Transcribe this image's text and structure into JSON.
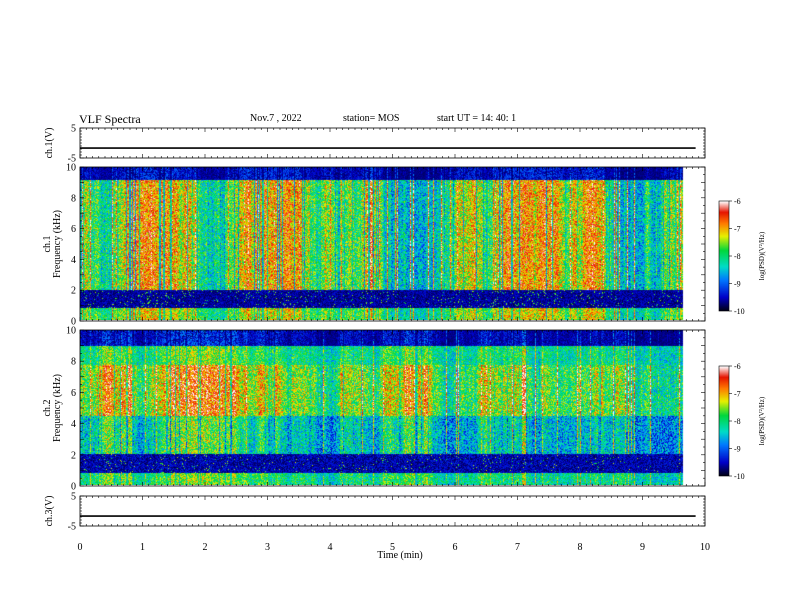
{
  "header": {
    "title": "VLF Spectra",
    "date": "Nov.7 , 2022",
    "station": "station= MOS",
    "start": "start UT = 14: 40: 1"
  },
  "colors": {
    "colormap": [
      "#00001a",
      "#0000ff",
      "#00c8ff",
      "#00e040",
      "#ffff00",
      "#ff2000",
      "#ffffff"
    ]
  },
  "chart_data": [
    {
      "type": "line",
      "panel": "ch1-waveform",
      "ylabel": "ch.1(V)",
      "ylim": [
        -5,
        5
      ],
      "yticks": [
        "5",
        "-5"
      ],
      "xlim": [
        0,
        10
      ],
      "level": -1.7,
      "series": [
        {
          "x": [
            0,
            9.85
          ],
          "values": [
            -1.7,
            -1.7
          ]
        }
      ]
    },
    {
      "type": "heatmap",
      "panel": "ch1-spectrogram",
      "ylabel": "ch.1\nFrequency (kHz)",
      "ylim": [
        0,
        10
      ],
      "yticks": [
        "0",
        "2",
        "4",
        "6",
        "8",
        "10"
      ],
      "xlim": [
        0,
        10
      ],
      "data_xmax": 9.85,
      "colorbar": {
        "label": "log(PSD)(V²/Hz)",
        "ticks": [
          "-6",
          "-7",
          "-8",
          "-9",
          "-10"
        ],
        "range": [
          -10,
          -6
        ]
      }
    },
    {
      "type": "heatmap",
      "panel": "ch2-spectrogram",
      "ylabel": "ch.2\nFrequency (kHz)",
      "ylim": [
        0,
        10
      ],
      "yticks": [
        "0",
        "2",
        "4",
        "6",
        "8",
        "10"
      ],
      "xlim": [
        0,
        10
      ],
      "data_xmax": 9.85,
      "colorbar": {
        "label": "log(PSD)(V²/Hz)",
        "ticks": [
          "-6",
          "-7",
          "-8",
          "-9",
          "-10"
        ],
        "range": [
          -10,
          -6
        ]
      }
    },
    {
      "type": "line",
      "panel": "ch3-waveform",
      "ylabel": "ch.3(V)",
      "ylim": [
        -5,
        5
      ],
      "yticks": [
        "5",
        "-5"
      ],
      "xlim": [
        0,
        10
      ],
      "level": -1.7,
      "xlabel": "Time (min)",
      "xticks": [
        "0",
        "1",
        "2",
        "3",
        "4",
        "5",
        "6",
        "7",
        "8",
        "9",
        "10"
      ],
      "series": [
        {
          "x": [
            0,
            9.85
          ],
          "values": [
            -1.7,
            -1.7
          ]
        }
      ]
    }
  ]
}
